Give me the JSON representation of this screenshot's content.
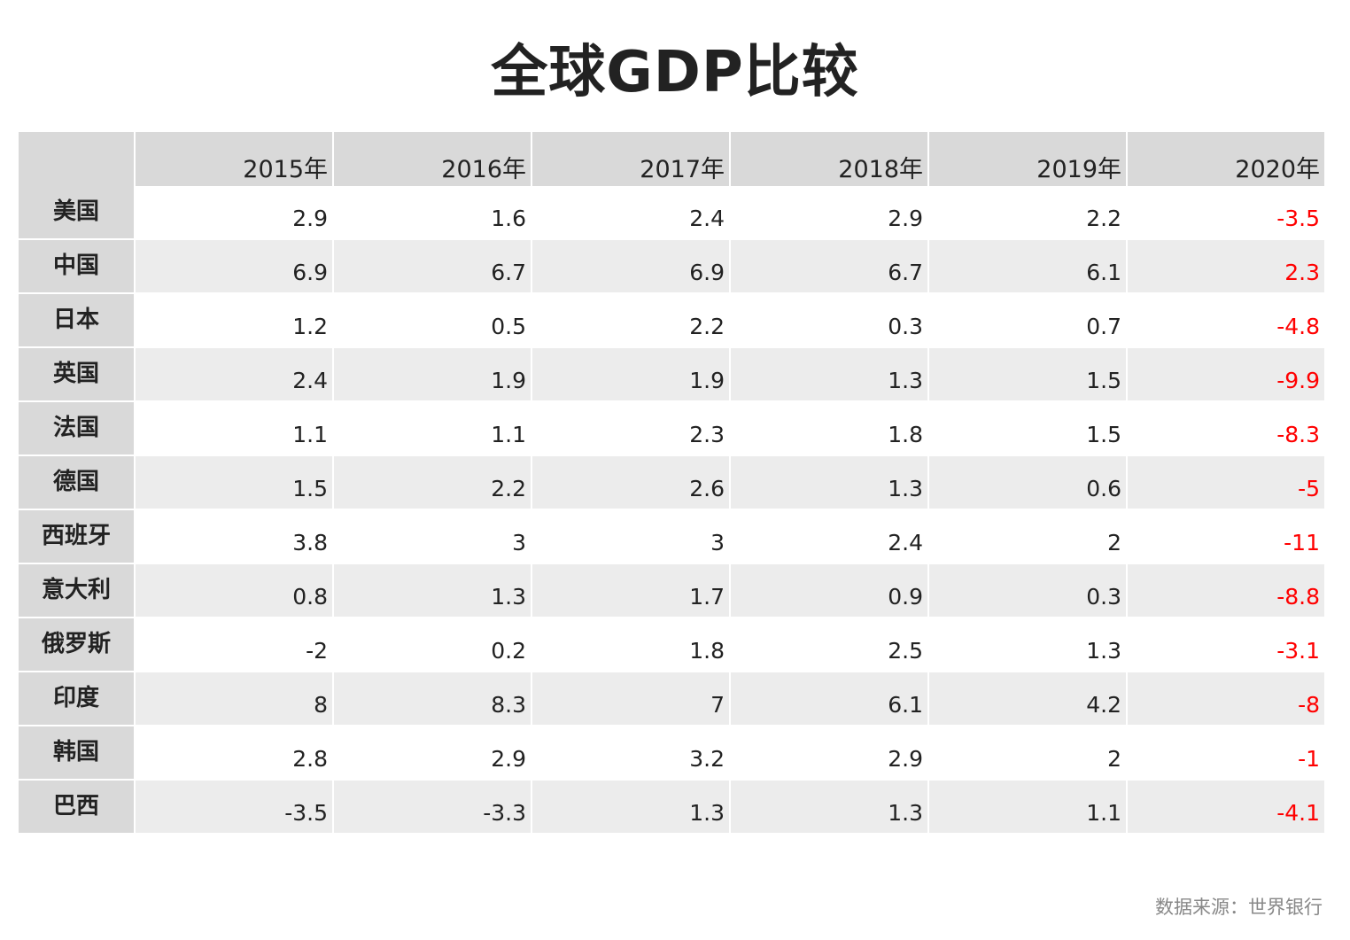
{
  "title": "全球GDP比较",
  "source": "数据来源：世界银行",
  "colors": {
    "header_bg": "#d9d9d9",
    "stripe_bg": "#ececec",
    "highlight_text": "#ff0000",
    "text": "#222222"
  },
  "chart_data": {
    "type": "table",
    "title": "全球GDP比较",
    "columns": [
      "2015年",
      "2016年",
      "2017年",
      "2018年",
      "2019年",
      "2020年"
    ],
    "highlighted_column": "2020年",
    "rows": [
      {
        "country": "美国",
        "values": [
          "2.9",
          "1.6",
          "2.4",
          "2.9",
          "2.2",
          "-3.5"
        ]
      },
      {
        "country": "中国",
        "values": [
          "6.9",
          "6.7",
          "6.9",
          "6.7",
          "6.1",
          "2.3"
        ]
      },
      {
        "country": "日本",
        "values": [
          "1.2",
          "0.5",
          "2.2",
          "0.3",
          "0.7",
          "-4.8"
        ]
      },
      {
        "country": "英国",
        "values": [
          "2.4",
          "1.9",
          "1.9",
          "1.3",
          "1.5",
          "-9.9"
        ]
      },
      {
        "country": "法国",
        "values": [
          "1.1",
          "1.1",
          "2.3",
          "1.8",
          "1.5",
          "-8.3"
        ]
      },
      {
        "country": "德国",
        "values": [
          "1.5",
          "2.2",
          "2.6",
          "1.3",
          "0.6",
          "-5"
        ]
      },
      {
        "country": "西班牙",
        "values": [
          "3.8",
          "3",
          "3",
          "2.4",
          "2",
          "-11"
        ]
      },
      {
        "country": "意大利",
        "values": [
          "0.8",
          "1.3",
          "1.7",
          "0.9",
          "0.3",
          "-8.8"
        ]
      },
      {
        "country": "俄罗斯",
        "values": [
          "-2",
          "0.2",
          "1.8",
          "2.5",
          "1.3",
          "-3.1"
        ]
      },
      {
        "country": "印度",
        "values": [
          "8",
          "8.3",
          "7",
          "6.1",
          "4.2",
          "-8"
        ]
      },
      {
        "country": "韩国",
        "values": [
          "2.8",
          "2.9",
          "3.2",
          "2.9",
          "2",
          "-1"
        ]
      },
      {
        "country": "巴西",
        "values": [
          "-3.5",
          "-3.3",
          "1.3",
          "1.3",
          "1.1",
          "-4.1"
        ]
      }
    ]
  }
}
